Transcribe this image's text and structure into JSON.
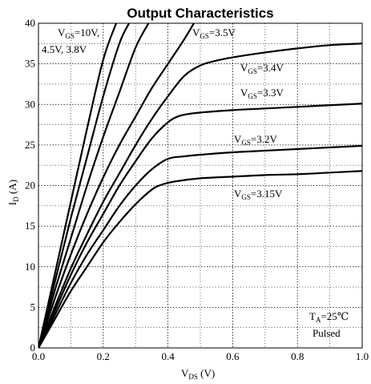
{
  "chart_data": {
    "type": "line",
    "title": "Output Characteristics",
    "xlabel": {
      "main": "V",
      "sub": "DS",
      "unit": " (V)"
    },
    "ylabel": {
      "main": "I",
      "sub": "D",
      "unit": " (A)"
    },
    "xlim": [
      0,
      1.0
    ],
    "ylim": [
      0,
      40
    ],
    "grid": true,
    "x_ticks": [
      "0.0",
      "0.2",
      "0.4",
      "0.6",
      "0.8",
      "1.0"
    ],
    "y_ticks": [
      "0",
      "5",
      "10",
      "15",
      "20",
      "25",
      "30",
      "35",
      "40"
    ],
    "annotation": {
      "line1_main": "T",
      "line1_sub": "A",
      "line1_rest": "=25℃",
      "line2": "Pulsed"
    },
    "curve_labels": [
      {
        "main": "V",
        "sub": "GS",
        "rest": "=10V,"
      },
      {
        "main": "",
        "sub": "",
        "rest": "4.5V, 3.8V"
      },
      {
        "main": "V",
        "sub": "GS",
        "rest": "=3.5V"
      },
      {
        "main": "V",
        "sub": "GS",
        "rest": "=3.4V"
      },
      {
        "main": "V",
        "sub": "GS",
        "rest": "=3.3V"
      },
      {
        "main": "V",
        "sub": "GS",
        "rest": "=3.2V"
      },
      {
        "main": "V",
        "sub": "GS",
        "rest": "=3.15V"
      }
    ],
    "series": [
      {
        "vgs": "10V",
        "x": [
          0,
          0.05,
          0.1,
          0.15,
          0.2,
          0.24
        ],
        "y": [
          0,
          9,
          18,
          27,
          35.5,
          40
        ]
      },
      {
        "vgs": "4.5V",
        "x": [
          0,
          0.05,
          0.1,
          0.15,
          0.2,
          0.25,
          0.28
        ],
        "y": [
          0,
          8,
          16,
          23.5,
          31,
          37.5,
          40
        ]
      },
      {
        "vgs": "3.8V",
        "x": [
          0,
          0.05,
          0.1,
          0.15,
          0.2,
          0.25,
          0.3,
          0.34
        ],
        "y": [
          0,
          7,
          13.5,
          20,
          26,
          31.5,
          37,
          40
        ]
      },
      {
        "vgs": "3.5V",
        "x": [
          0,
          0.05,
          0.1,
          0.15,
          0.2,
          0.25,
          0.3,
          0.35,
          0.4,
          0.45,
          0.48
        ],
        "y": [
          0,
          6,
          11.5,
          16.5,
          21,
          25,
          28.5,
          32,
          35,
          38,
          40
        ]
      },
      {
        "vgs": "3.4V",
        "x": [
          0,
          0.05,
          0.1,
          0.15,
          0.2,
          0.25,
          0.3,
          0.35,
          0.4,
          0.45,
          0.5,
          0.55,
          0.6,
          0.7,
          0.8,
          0.9,
          1.0
        ],
        "y": [
          0,
          5,
          9.8,
          14,
          18,
          21.5,
          25,
          28.2,
          31,
          33.5,
          34.8,
          35.4,
          35.8,
          36.4,
          36.9,
          37.3,
          37.5
        ]
      },
      {
        "vgs": "3.3V",
        "x": [
          0,
          0.05,
          0.1,
          0.15,
          0.2,
          0.25,
          0.3,
          0.35,
          0.4,
          0.43,
          0.46,
          0.5,
          0.6,
          0.7,
          0.8,
          0.9,
          1.0
        ],
        "y": [
          0,
          4.5,
          9,
          13,
          16.5,
          20,
          23,
          25.8,
          27.8,
          28.5,
          28.8,
          29,
          29.3,
          29.5,
          29.7,
          29.9,
          30.1
        ]
      },
      {
        "vgs": "3.2V",
        "x": [
          0,
          0.05,
          0.1,
          0.15,
          0.2,
          0.25,
          0.3,
          0.35,
          0.4,
          0.45,
          0.5,
          0.6,
          0.7,
          0.8,
          0.9,
          1.0
        ],
        "y": [
          0,
          4,
          8,
          11.5,
          14.5,
          17.5,
          20,
          22,
          23.3,
          23.6,
          23.8,
          24.1,
          24.3,
          24.5,
          24.7,
          24.9
        ]
      },
      {
        "vgs": "3.15V",
        "x": [
          0,
          0.05,
          0.1,
          0.15,
          0.2,
          0.25,
          0.3,
          0.35,
          0.38,
          0.42,
          0.5,
          0.6,
          0.7,
          0.8,
          0.9,
          1.0
        ],
        "y": [
          0,
          3.5,
          7,
          10,
          13,
          15.5,
          17.7,
          19.5,
          20.1,
          20.5,
          20.9,
          21.1,
          21.3,
          21.4,
          21.6,
          21.8
        ]
      }
    ]
  }
}
